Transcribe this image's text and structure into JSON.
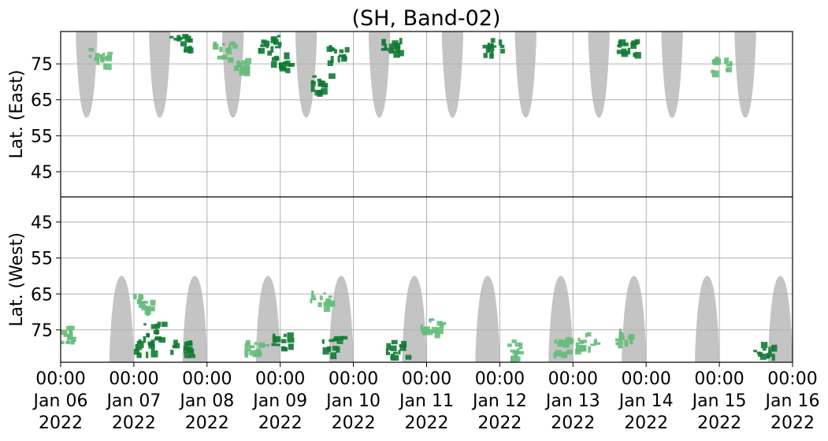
{
  "chart_data": {
    "type": "heatmap",
    "title": "(SH, Band-02)",
    "xlabel": "",
    "ylabel_top": "Lat. (East)",
    "ylabel_bottom": "Lat. (West)",
    "x_range": [
      "2022-01-06T00:00",
      "2022-01-16T00:00"
    ],
    "x_ticks": [
      {
        "time": "00:00",
        "date": "Jan 06",
        "year": "2022"
      },
      {
        "time": "00:00",
        "date": "Jan 07",
        "year": "2022"
      },
      {
        "time": "00:00",
        "date": "Jan 08",
        "year": "2022"
      },
      {
        "time": "00:00",
        "date": "Jan 09",
        "year": "2022"
      },
      {
        "time": "00:00",
        "date": "Jan 10",
        "year": "2022"
      },
      {
        "time": "00:00",
        "date": "Jan 11",
        "year": "2022"
      },
      {
        "time": "00:00",
        "date": "Jan 12",
        "year": "2022"
      },
      {
        "time": "00:00",
        "date": "Jan 13",
        "year": "2022"
      },
      {
        "time": "00:00",
        "date": "Jan 14",
        "year": "2022"
      },
      {
        "time": "00:00",
        "date": "Jan 15",
        "year": "2022"
      },
      {
        "time": "00:00",
        "date": "Jan 16",
        "year": "2022"
      }
    ],
    "y_ticks_east": [
      "45",
      "55",
      "65",
      "75"
    ],
    "y_ticks_west": [
      "75",
      "65",
      "55",
      "45"
    ],
    "lat_range": [
      38,
      84
    ],
    "grid": true,
    "colors": {
      "gray_band": "#c4c4c4",
      "detection_light": "#66bb7a",
      "detection_dark": "#0f7a33",
      "grid": "#b0b0b0",
      "divider": "#000000"
    },
    "series": [
      {
        "hemisphere": "east",
        "kind": "gray_band",
        "bands": [
          {
            "start": "2022-01-06T05:00",
            "end": "2022-01-06T12:00",
            "min_lat": 60
          },
          {
            "start": "2022-01-07T05:00",
            "end": "2022-01-07T12:00",
            "min_lat": 60
          },
          {
            "start": "2022-01-08T05:00",
            "end": "2022-01-08T12:00",
            "min_lat": 60
          },
          {
            "start": "2022-01-09T05:00",
            "end": "2022-01-09T12:00",
            "min_lat": 60
          },
          {
            "start": "2022-01-10T05:00",
            "end": "2022-01-10T12:00",
            "min_lat": 60
          },
          {
            "start": "2022-01-11T05:00",
            "end": "2022-01-11T12:00",
            "min_lat": 60
          },
          {
            "start": "2022-01-12T05:00",
            "end": "2022-01-12T12:00",
            "min_lat": 60
          },
          {
            "start": "2022-01-13T05:00",
            "end": "2022-01-13T12:00",
            "min_lat": 60
          },
          {
            "start": "2022-01-14T05:00",
            "end": "2022-01-14T12:00",
            "min_lat": 60
          },
          {
            "start": "2022-01-15T05:00",
            "end": "2022-01-15T12:00",
            "min_lat": 60
          }
        ]
      },
      {
        "hemisphere": "west",
        "kind": "gray_band",
        "bands": [
          {
            "start": "2022-01-06T16:00",
            "end": "2022-01-07T00:00",
            "min_lat": 60
          },
          {
            "start": "2022-01-07T16:00",
            "end": "2022-01-08T00:00",
            "min_lat": 60
          },
          {
            "start": "2022-01-08T16:00",
            "end": "2022-01-09T00:00",
            "min_lat": 60
          },
          {
            "start": "2022-01-09T16:00",
            "end": "2022-01-10T00:00",
            "min_lat": 60
          },
          {
            "start": "2022-01-10T16:00",
            "end": "2022-01-11T00:00",
            "min_lat": 60
          },
          {
            "start": "2022-01-11T16:00",
            "end": "2022-01-12T00:00",
            "min_lat": 60
          },
          {
            "start": "2022-01-12T16:00",
            "end": "2022-01-13T00:00",
            "min_lat": 60
          },
          {
            "start": "2022-01-13T16:00",
            "end": "2022-01-14T00:00",
            "min_lat": 60
          },
          {
            "start": "2022-01-14T16:00",
            "end": "2022-01-15T00:00",
            "min_lat": 60
          },
          {
            "start": "2022-01-15T16:00",
            "end": "2022-01-16T00:00",
            "min_lat": 60
          }
        ]
      },
      {
        "kind": "detections",
        "clusters": [
          {
            "hemisphere": "west",
            "time": "2022-01-06T00:30",
            "lat": 76,
            "intensity": "light"
          },
          {
            "hemisphere": "east",
            "time": "2022-01-06T12:00",
            "lat": 77,
            "intensity": "light"
          },
          {
            "hemisphere": "west",
            "time": "2022-01-07T03:00",
            "lat": 79,
            "intensity": "dark"
          },
          {
            "hemisphere": "west",
            "time": "2022-01-07T06:00",
            "lat": 75,
            "intensity": "dark"
          },
          {
            "hemisphere": "west",
            "time": "2022-01-07T02:00",
            "lat": 67,
            "intensity": "light"
          },
          {
            "hemisphere": "east",
            "time": "2022-01-07T15:00",
            "lat": 81,
            "intensity": "dark"
          },
          {
            "hemisphere": "west",
            "time": "2022-01-07T15:00",
            "lat": 80,
            "intensity": "dark"
          },
          {
            "hemisphere": "east",
            "time": "2022-01-08T05:00",
            "lat": 79,
            "intensity": "light"
          },
          {
            "hemisphere": "east",
            "time": "2022-01-08T10:00",
            "lat": 75,
            "intensity": "light"
          },
          {
            "hemisphere": "west",
            "time": "2022-01-08T15:00",
            "lat": 80,
            "intensity": "light"
          },
          {
            "hemisphere": "east",
            "time": "2022-01-09T00:00",
            "lat": 76,
            "intensity": "dark"
          },
          {
            "hemisphere": "east",
            "time": "2022-01-08T20:00",
            "lat": 81,
            "intensity": "dark"
          },
          {
            "hemisphere": "west",
            "time": "2022-01-09T00:00",
            "lat": 78,
            "intensity": "dark"
          },
          {
            "hemisphere": "east",
            "time": "2022-01-09T13:00",
            "lat": 70,
            "intensity": "dark"
          },
          {
            "hemisphere": "east",
            "time": "2022-01-09T18:00",
            "lat": 78,
            "intensity": "dark"
          },
          {
            "hemisphere": "west",
            "time": "2022-01-09T13:00",
            "lat": 66,
            "intensity": "light"
          },
          {
            "hemisphere": "west",
            "time": "2022-01-09T17:00",
            "lat": 79,
            "intensity": "dark"
          },
          {
            "hemisphere": "east",
            "time": "2022-01-10T12:00",
            "lat": 80,
            "intensity": "dark"
          },
          {
            "hemisphere": "west",
            "time": "2022-01-10T14:00",
            "lat": 80,
            "intensity": "dark"
          },
          {
            "hemisphere": "west",
            "time": "2022-01-11T01:00",
            "lat": 74,
            "intensity": "light"
          },
          {
            "hemisphere": "east",
            "time": "2022-01-11T21:00",
            "lat": 80,
            "intensity": "dark"
          },
          {
            "hemisphere": "west",
            "time": "2022-01-12T03:00",
            "lat": 80,
            "intensity": "light"
          },
          {
            "hemisphere": "west",
            "time": "2022-01-12T20:00",
            "lat": 79,
            "intensity": "light"
          },
          {
            "hemisphere": "west",
            "time": "2022-01-13T04:00",
            "lat": 78,
            "intensity": "light"
          },
          {
            "hemisphere": "east",
            "time": "2022-01-13T17:00",
            "lat": 80,
            "intensity": "dark"
          },
          {
            "hemisphere": "west",
            "time": "2022-01-13T17:00",
            "lat": 77,
            "intensity": "light"
          },
          {
            "hemisphere": "east",
            "time": "2022-01-15T00:00",
            "lat": 75,
            "intensity": "light"
          },
          {
            "hemisphere": "west",
            "time": "2022-01-15T14:00",
            "lat": 80,
            "intensity": "dark"
          }
        ]
      }
    ]
  }
}
